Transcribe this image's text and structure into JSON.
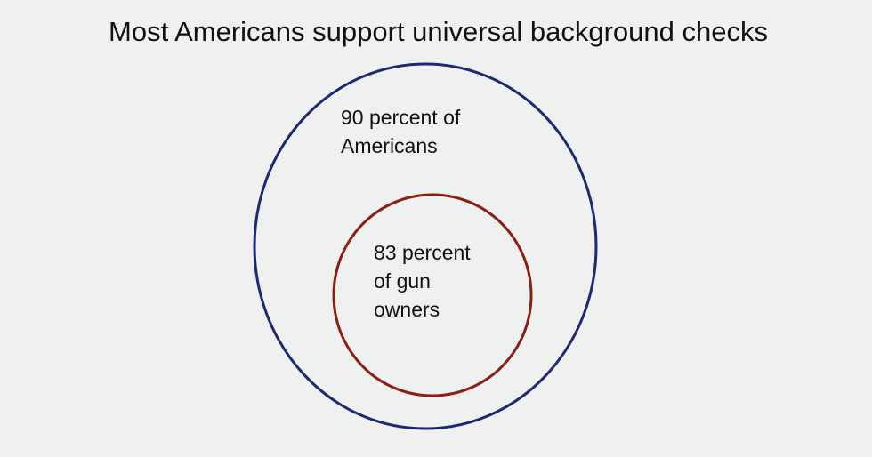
{
  "title": "Most Americans support universal background checks",
  "outer_set": {
    "lines": [
      "90 percent of",
      "Americans"
    ],
    "color": "#1c2a73"
  },
  "inner_set": {
    "lines": [
      "83 percent",
      "of gun",
      "owners"
    ],
    "color": "#8b1f14"
  },
  "background": "#eff1f0"
}
